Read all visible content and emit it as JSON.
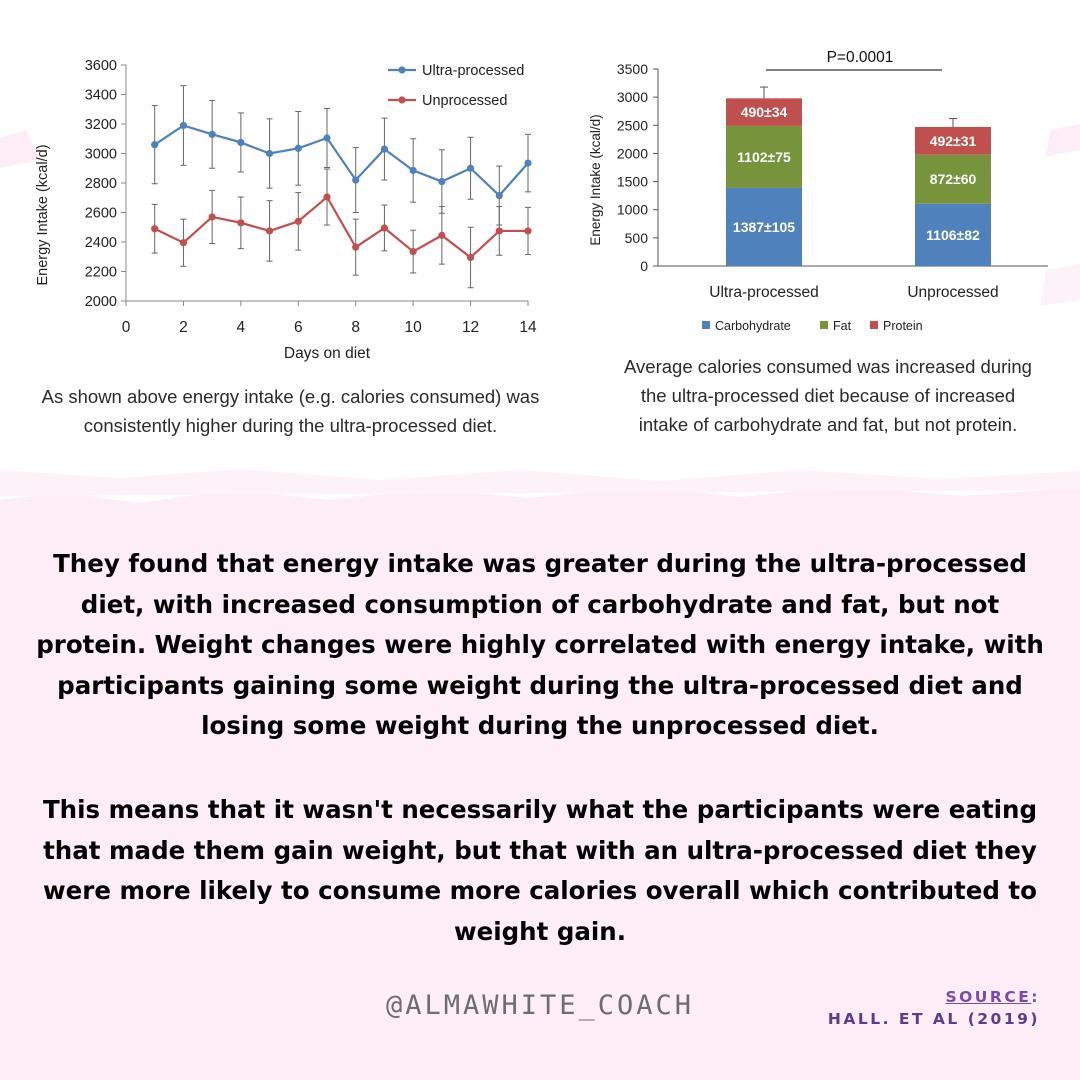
{
  "captions": {
    "left": "As shown above energy intake (e.g. calories consumed) was consistently higher during the ultra-processed diet.",
    "right": "Average calories consumed was increased during the ultra-processed diet because of increased intake of carbohydrate and fat, but not protein."
  },
  "main_text": {
    "paragraph1": "They found that energy intake was greater during the ultra-processed diet, with increased consumption of carbohydrate and fat, but not protein. Weight changes were highly correlated with energy intake, with participants gaining some weight during the ultra-processed diet and losing some weight during the unprocessed diet.",
    "paragraph2": "This means that it wasn't necessarily what the participants were eating that made them gain weight, but that with an ultra-processed diet they were more likely to consume more calories overall which contributed to weight gain."
  },
  "handle": "@ALMAWHITE_COACH",
  "source": {
    "label": "SOURCE",
    "colon": ":",
    "citation": "HALL. ET AL (2019)"
  },
  "colors": {
    "pink_bg": "#fcedf6",
    "ultra_line": "#4f81bd",
    "unprocessed_line": "#c0504d",
    "carbohydrate": "#4f81bd",
    "fat": "#77933c",
    "protein": "#c0504d"
  },
  "chart_data": [
    {
      "type": "line",
      "xlabel": "Days on diet",
      "ylabel": "Energy Intake (kcal/d)",
      "xlim": [
        0,
        14
      ],
      "ylim": [
        2000,
        3600
      ],
      "xticks": [
        0,
        2,
        4,
        6,
        8,
        10,
        12,
        14
      ],
      "yticks": [
        2000,
        2200,
        2400,
        2600,
        2800,
        3000,
        3200,
        3400,
        3600
      ],
      "x": [
        1,
        2,
        3,
        4,
        5,
        6,
        7,
        8,
        9,
        10,
        11,
        12,
        13,
        14
      ],
      "legend_position": "top-right",
      "series": [
        {
          "name": "Ultra-processed",
          "color": "#4f81bd",
          "values": [
            3060,
            3190,
            3130,
            3075,
            3000,
            3035,
            3105,
            2820,
            3030,
            2885,
            2810,
            2900,
            2715,
            2935
          ],
          "errors": [
            265,
            270,
            230,
            200,
            235,
            250,
            200,
            220,
            210,
            215,
            215,
            210,
            200,
            195
          ]
        },
        {
          "name": "Unprocessed",
          "color": "#c0504d",
          "values": [
            2490,
            2395,
            2570,
            2530,
            2475,
            2540,
            2705,
            2365,
            2495,
            2335,
            2445,
            2295,
            2475,
            2475
          ],
          "errors": [
            165,
            160,
            180,
            175,
            205,
            195,
            190,
            190,
            155,
            145,
            195,
            205,
            165,
            160
          ]
        }
      ]
    },
    {
      "type": "bar",
      "stacked": true,
      "ylabel": "Energy Intake (kcal/d)",
      "ylim": [
        0,
        3500
      ],
      "yticks": [
        0,
        500,
        1000,
        1500,
        2000,
        2500,
        3000,
        3500
      ],
      "categories": [
        "Ultra-processed",
        "Unprocessed"
      ],
      "annotation": "P=0.0001",
      "totals_error": [
        200,
        150
      ],
      "legend_position": "bottom",
      "series": [
        {
          "name": "Carbohydrate",
          "color": "#4f81bd",
          "values": [
            1387,
            1106
          ],
          "labels": [
            "1387±105",
            "1106±82"
          ]
        },
        {
          "name": "Fat",
          "color": "#77933c",
          "values": [
            1102,
            872
          ],
          "labels": [
            "1102±75",
            "872±60"
          ]
        },
        {
          "name": "Protein",
          "color": "#c0504d",
          "values": [
            490,
            492
          ],
          "labels": [
            "490±34",
            "492±31"
          ]
        }
      ]
    }
  ]
}
